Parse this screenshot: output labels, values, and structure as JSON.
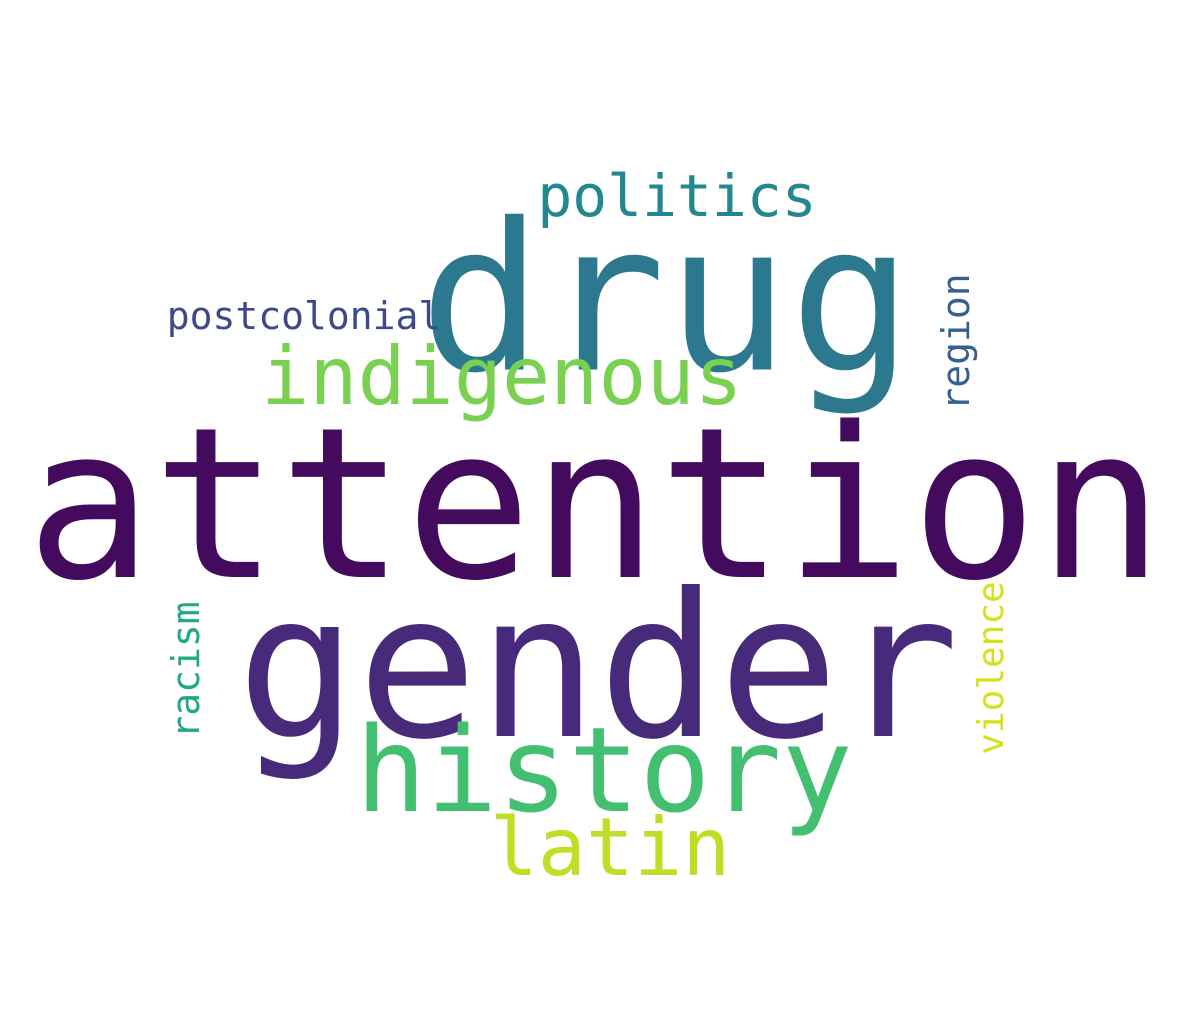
{
  "words": [
    {
      "id": "attention",
      "text": "attention",
      "color": "#440a5e"
    },
    {
      "id": "drug",
      "text": "drug",
      "color": "#2c788e"
    },
    {
      "id": "gender",
      "text": "gender",
      "color": "#472a7a"
    },
    {
      "id": "history",
      "text": "history",
      "color": "#43bf71"
    },
    {
      "id": "indigenous",
      "text": "indigenous",
      "color": "#7ad151"
    },
    {
      "id": "latin",
      "text": "latin",
      "color": "#bddf26"
    },
    {
      "id": "politics",
      "text": "politics",
      "color": "#23888e"
    },
    {
      "id": "postcolonial",
      "text": "postcolonial",
      "color": "#3e4989"
    },
    {
      "id": "region",
      "text": "region",
      "color": "#355f8d"
    },
    {
      "id": "racism",
      "text": "racism",
      "color": "#22a884"
    },
    {
      "id": "violence",
      "text": "violence",
      "color": "#d2e21b"
    }
  ]
}
